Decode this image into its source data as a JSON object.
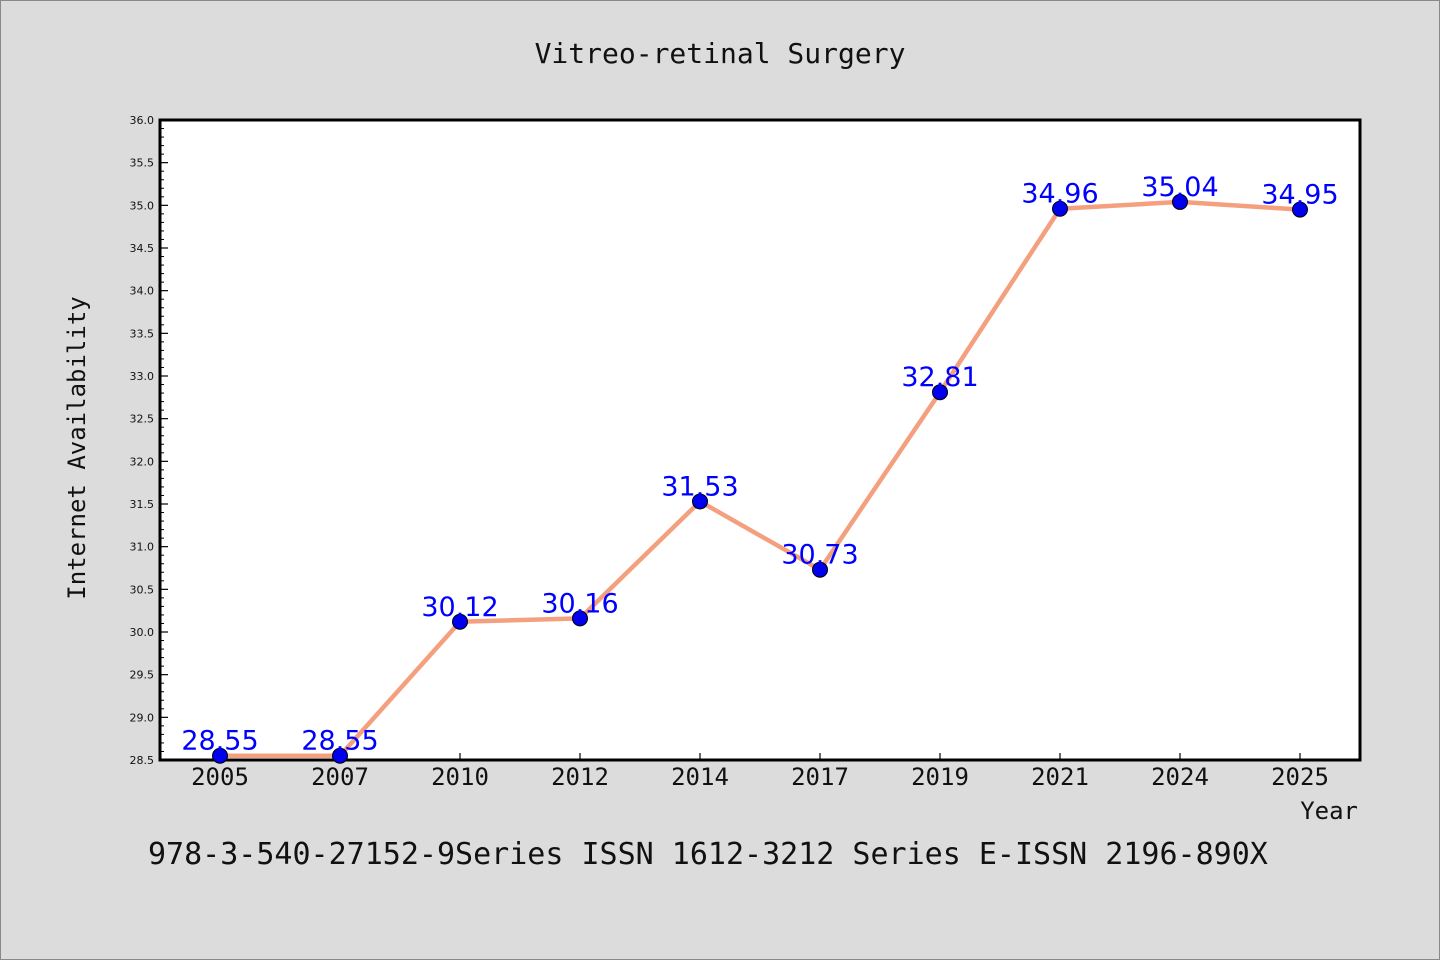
{
  "chart_data": {
    "type": "line",
    "title": "Vitreo-retinal Surgery",
    "xlabel": "Year",
    "ylabel": "Internet Availability",
    "categories": [
      "2005",
      "2007",
      "2010",
      "2012",
      "2014",
      "2017",
      "2019",
      "2021",
      "2024",
      "2025"
    ],
    "values": [
      28.55,
      28.55,
      30.12,
      30.16,
      31.53,
      30.73,
      32.81,
      34.96,
      35.04,
      34.95
    ],
    "data_labels": [
      "28.55",
      "28.55",
      "30.12",
      "30.16",
      "31.53",
      "30.73",
      "32.81",
      "34.96",
      "35.04",
      "34.95"
    ],
    "ylim": [
      28.5,
      36.0
    ],
    "yticks": [
      "28.5",
      "29.0",
      "29.5",
      "30.0",
      "30.5",
      "31.0",
      "31.5",
      "32.0",
      "32.5",
      "33.0",
      "33.5",
      "34.0",
      "34.5",
      "35.0",
      "35.5",
      "36.0"
    ],
    "grid": false,
    "legend": "none",
    "line_color": "#f4a07e",
    "marker_color": "#0000ee",
    "label_color": "#0000ff"
  },
  "footer": {
    "text": "978-3-540-27152-9Series ISSN 1612-3212 Series E-ISSN 2196-890X"
  }
}
